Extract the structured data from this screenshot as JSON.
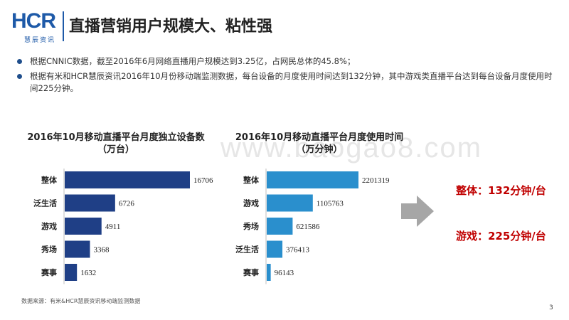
{
  "logo": {
    "name": "HCR",
    "sub": "慧辰资讯"
  },
  "title": "直播营销用户规模大、粘性强",
  "bullets": [
    "根据CNNIC数据，截至2016年6月网络直播用户规模达到3.25亿，占网民总体的45.8%；",
    "根据有米和HCR慧辰资讯2016年10月份移动端监测数据，每台设备的月度使用时间达到132分钟，其中游戏类直播平台达到每台设备月度使用时间225分钟。"
  ],
  "watermark": "www.baogao8.com",
  "chart_data": [
    {
      "type": "bar",
      "orientation": "horizontal",
      "title": "2016年10月移动直播平台月度独立设备数",
      "subtitle": "（万台）",
      "categories": [
        "整体",
        "泛生活",
        "游戏",
        "秀场",
        "赛事"
      ],
      "values": [
        16706,
        6726,
        4911,
        3368,
        1632
      ],
      "labels": [
        "16706",
        "6726",
        "4911",
        "3368",
        "1632"
      ],
      "color": "#1f3f86",
      "xlim": [
        0,
        16706
      ]
    },
    {
      "type": "bar",
      "orientation": "horizontal",
      "title": "2016年10月移动直播平台月度使用时间",
      "subtitle": "（万分钟）",
      "categories": [
        "整体",
        "游戏",
        "秀场",
        "泛生活",
        "赛事"
      ],
      "values": [
        2201319,
        1105763,
        621586,
        376413,
        96143
      ],
      "labels": [
        "2201319",
        "1105763",
        "621586",
        "376413",
        "96143"
      ],
      "color": "#2a8fcd",
      "xlim": [
        0,
        2201319
      ]
    }
  ],
  "callouts": [
    "整体：132分钟/台",
    "游戏：225分钟/台"
  ],
  "source": "数据来源：有米&HCR慧辰资讯移动端监测数据",
  "page_number": "3"
}
